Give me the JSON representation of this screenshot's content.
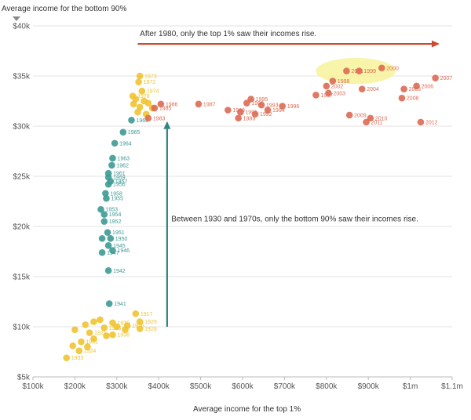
{
  "chart_data": {
    "type": "scatter",
    "xlabel": "Average income for the top 1%",
    "ylabel": "Average income for the bottom 90%",
    "xlim": [
      100000,
      1100000
    ],
    "ylim": [
      5000,
      40000
    ],
    "x_ticks": [
      100000,
      200000,
      300000,
      400000,
      500000,
      600000,
      700000,
      800000,
      900000,
      1000000,
      1100000
    ],
    "x_tick_labels": [
      "$100k",
      "$200k",
      "$300k",
      "$400k",
      "$500k",
      "$600k",
      "$700k",
      "$800k",
      "$900k",
      "$1m",
      "$1.1m"
    ],
    "y_ticks": [
      5000,
      10000,
      15000,
      20000,
      25000,
      30000,
      35000,
      40000
    ],
    "y_tick_labels": [
      "$5k",
      "$10k",
      "$15k",
      "$20k",
      "$25k",
      "$30k",
      "$35k",
      "$40k"
    ],
    "grid": "horizontal",
    "colors": {
      "early": "#f0c330",
      "middle": "#3d9a95",
      "late": "#dd6a52",
      "arrow_red": "#cc4a33",
      "arrow_teal": "#2e8680",
      "highlight": "#f7f29a"
    },
    "annotations": [
      {
        "text": "After 1980, only the top 1% saw their incomes rise.",
        "x": 355000,
        "y": 39000
      },
      {
        "text": "Between 1930 and 1970s, only the bottom 90% saw their incomes rise.",
        "x": 430000,
        "y": 20500
      }
    ],
    "arrows": [
      {
        "color": "arrow_red",
        "x0": 350000,
        "y0": 38200,
        "x1": 1070000,
        "y1": 38200
      },
      {
        "color": "arrow_teal",
        "x0": 420000,
        "y0": 10000,
        "x1": 420000,
        "y1": 30500
      }
    ],
    "highlight": {
      "cx": 870000,
      "cy": 35500,
      "rx": 95000,
      "ry": 1300
    },
    "points": [
      {
        "label": "1917",
        "x": 345000,
        "y": 11300,
        "g": "early"
      },
      {
        "label": "1929",
        "x": 355000,
        "y": 10500,
        "g": "early"
      },
      {
        "label": "1928",
        "x": 355000,
        "y": 9800,
        "g": "early"
      },
      {
        "label": "1930",
        "x": 290000,
        "y": 10400,
        "g": "early"
      },
      {
        "label": "1926",
        "x": 325000,
        "y": 10100,
        "g": "early"
      },
      {
        "label": "1936",
        "x": 290000,
        "y": 9200,
        "g": "early"
      },
      {
        "label": "1935",
        "x": 270000,
        "y": 9900,
        "g": "early"
      },
      {
        "label": "1921",
        "x": 235000,
        "y": 9400,
        "g": "early"
      },
      {
        "label": "1931",
        "x": 215000,
        "y": 8500,
        "g": "early"
      },
      {
        "label": "1924",
        "x": 210000,
        "y": 7600,
        "g": "early"
      },
      {
        "label": "1933",
        "x": 180000,
        "y": 6900,
        "g": "early"
      },
      {
        "label": "",
        "x": 195000,
        "y": 8100,
        "g": "early"
      },
      {
        "label": "",
        "x": 200000,
        "y": 9700,
        "g": "early"
      },
      {
        "label": "",
        "x": 225000,
        "y": 10200,
        "g": "early"
      },
      {
        "label": "",
        "x": 245000,
        "y": 10500,
        "g": "early"
      },
      {
        "label": "",
        "x": 260000,
        "y": 10700,
        "g": "early"
      },
      {
        "label": "",
        "x": 320000,
        "y": 9700,
        "g": "early"
      },
      {
        "label": "",
        "x": 245000,
        "y": 8800,
        "g": "early"
      },
      {
        "label": "",
        "x": 275000,
        "y": 9100,
        "g": "early"
      },
      {
        "label": "",
        "x": 230000,
        "y": 8000,
        "g": "early"
      },
      {
        "label": "",
        "x": 300000,
        "y": 10000,
        "g": "early"
      },
      {
        "label": "1941",
        "x": 282000,
        "y": 12300,
        "g": "middle"
      },
      {
        "label": "1942",
        "x": 280000,
        "y": 15600,
        "g": "middle"
      },
      {
        "label": "1947",
        "x": 265000,
        "y": 17400,
        "g": "middle"
      },
      {
        "label": "1946",
        "x": 290000,
        "y": 17600,
        "g": "middle"
      },
      {
        "label": "1945",
        "x": 280000,
        "y": 18100,
        "g": "middle"
      },
      {
        "label": "1950",
        "x": 285000,
        "y": 18800,
        "g": "middle"
      },
      {
        "label": "",
        "x": 265000,
        "y": 18800,
        "g": "middle"
      },
      {
        "label": "1951",
        "x": 278000,
        "y": 19400,
        "g": "middle"
      },
      {
        "label": "1952",
        "x": 270000,
        "y": 20500,
        "g": "middle"
      },
      {
        "label": "1954",
        "x": 270000,
        "y": 21200,
        "g": "middle"
      },
      {
        "label": "1953",
        "x": 262000,
        "y": 21700,
        "g": "middle"
      },
      {
        "label": "1955",
        "x": 275000,
        "y": 22800,
        "g": "middle"
      },
      {
        "label": "1958",
        "x": 273000,
        "y": 23300,
        "g": "middle"
      },
      {
        "label": "1956",
        "x": 280000,
        "y": 24200,
        "g": "middle"
      },
      {
        "label": "1957",
        "x": 285000,
        "y": 24500,
        "g": "middle"
      },
      {
        "label": "1959",
        "x": 280000,
        "y": 24900,
        "g": "middle"
      },
      {
        "label": "1961",
        "x": 280000,
        "y": 25300,
        "g": "middle"
      },
      {
        "label": "1962",
        "x": 288000,
        "y": 26100,
        "g": "middle"
      },
      {
        "label": "1963",
        "x": 290000,
        "y": 26800,
        "g": "middle"
      },
      {
        "label": "1964",
        "x": 295000,
        "y": 28300,
        "g": "middle"
      },
      {
        "label": "1965",
        "x": 315000,
        "y": 29400,
        "g": "middle"
      },
      {
        "label": "1966",
        "x": 335000,
        "y": 30600,
        "g": "middle"
      },
      {
        "label": "1973",
        "x": 355000,
        "y": 35000,
        "g": "early"
      },
      {
        "label": "1972",
        "x": 352000,
        "y": 34400,
        "g": "early"
      },
      {
        "label": "1974",
        "x": 360000,
        "y": 33500,
        "g": "early"
      },
      {
        "label": "1978",
        "x": 338000,
        "y": 33000,
        "g": "early"
      },
      {
        "label": "",
        "x": 345000,
        "y": 32700,
        "g": "early"
      },
      {
        "label": "",
        "x": 365000,
        "y": 32500,
        "g": "early"
      },
      {
        "label": "",
        "x": 340000,
        "y": 32200,
        "g": "early"
      },
      {
        "label": "",
        "x": 355000,
        "y": 31900,
        "g": "early"
      },
      {
        "label": "",
        "x": 375000,
        "y": 32300,
        "g": "early"
      },
      {
        "label": "",
        "x": 350000,
        "y": 31400,
        "g": "early"
      },
      {
        "label": "",
        "x": 385000,
        "y": 31800,
        "g": "early"
      },
      {
        "label": "",
        "x": 370000,
        "y": 31200,
        "g": "early"
      },
      {
        "label": "1983",
        "x": 375000,
        "y": 30800,
        "g": "late"
      },
      {
        "label": "1985",
        "x": 390000,
        "y": 31800,
        "g": "late"
      },
      {
        "label": "1986",
        "x": 405000,
        "y": 32200,
        "g": "late"
      },
      {
        "label": "1987",
        "x": 495000,
        "y": 32200,
        "g": "late"
      },
      {
        "label": "1988",
        "x": 565000,
        "y": 31600,
        "g": "late"
      },
      {
        "label": "1989",
        "x": 590000,
        "y": 30800,
        "g": "late"
      },
      {
        "label": "1990",
        "x": 610000,
        "y": 32300,
        "g": "late"
      },
      {
        "label": "1991",
        "x": 595000,
        "y": 31400,
        "g": "late"
      },
      {
        "label": "1992",
        "x": 630000,
        "y": 31200,
        "g": "late"
      },
      {
        "label": "1993",
        "x": 645000,
        "y": 32100,
        "g": "late"
      },
      {
        "label": "1994",
        "x": 660000,
        "y": 31600,
        "g": "late"
      },
      {
        "label": "1995",
        "x": 620000,
        "y": 32700,
        "g": "late"
      },
      {
        "label": "1996",
        "x": 695000,
        "y": 32000,
        "g": "late"
      },
      {
        "label": "1997",
        "x": 775000,
        "y": 33100,
        "g": "late"
      },
      {
        "label": "1998",
        "x": 815000,
        "y": 34500,
        "g": "late"
      },
      {
        "label": "1999",
        "x": 878000,
        "y": 35500,
        "g": "late"
      },
      {
        "label": "2000",
        "x": 932000,
        "y": 35800,
        "g": "late"
      },
      {
        "label": "2001",
        "x": 848000,
        "y": 35500,
        "g": "late"
      },
      {
        "label": "2002",
        "x": 800000,
        "y": 34000,
        "g": "late"
      },
      {
        "label": "2003",
        "x": 805000,
        "y": 33300,
        "g": "late"
      },
      {
        "label": "2004",
        "x": 885000,
        "y": 33700,
        "g": "late"
      },
      {
        "label": "2005",
        "x": 985000,
        "y": 33700,
        "g": "late"
      },
      {
        "label": "2006",
        "x": 1015000,
        "y": 34000,
        "g": "late"
      },
      {
        "label": "2007",
        "x": 1060000,
        "y": 34800,
        "g": "late"
      },
      {
        "label": "2008",
        "x": 980000,
        "y": 32800,
        "g": "late"
      },
      {
        "label": "2009",
        "x": 855000,
        "y": 31100,
        "g": "late"
      },
      {
        "label": "2010",
        "x": 905000,
        "y": 30800,
        "g": "late"
      },
      {
        "label": "2011",
        "x": 895000,
        "y": 30400,
        "g": "late"
      },
      {
        "label": "2012",
        "x": 1025000,
        "y": 30400,
        "g": "late"
      }
    ]
  }
}
